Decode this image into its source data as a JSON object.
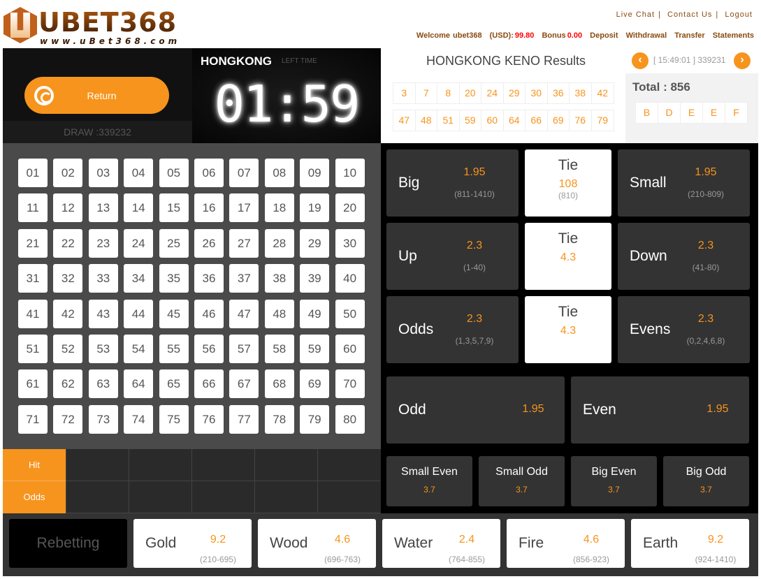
{
  "logo": {
    "text": "UBET368",
    "url": "www.uBet368.com"
  },
  "top_links": [
    "Live Chat",
    "Contact Us",
    "Logout"
  ],
  "account": {
    "welcome": "Welcome",
    "user": "ubet368",
    "currency_label": "(USD):",
    "balance": "99.80",
    "bonus_label": "Bonus",
    "bonus": "0.00",
    "links": [
      "Deposit",
      "Withdrawal",
      "Transfer",
      "Statements"
    ]
  },
  "return_label": "Return",
  "draw_label": "DRAW :339232",
  "timer": {
    "city": "HONGKONG",
    "left_time_label": "LEFT TIME",
    "time": "01:59"
  },
  "results": {
    "title": "HONGKONG KENO Results",
    "draw_info": "[ 15:49:01 ] 339231",
    "prev": "‹",
    "next": "›",
    "row1": [
      "3",
      "7",
      "8",
      "20",
      "24",
      "29",
      "30",
      "36",
      "38",
      "42"
    ],
    "row2": [
      "47",
      "48",
      "51",
      "59",
      "60",
      "64",
      "66",
      "69",
      "76",
      "79"
    ],
    "total": "Total : 856",
    "letters": [
      "B",
      "D",
      "E",
      "E",
      "F"
    ]
  },
  "numbers": [
    "01",
    "02",
    "03",
    "04",
    "05",
    "06",
    "07",
    "08",
    "09",
    "10",
    "11",
    "12",
    "13",
    "14",
    "15",
    "16",
    "17",
    "18",
    "19",
    "20",
    "21",
    "22",
    "23",
    "24",
    "25",
    "26",
    "27",
    "28",
    "29",
    "30",
    "31",
    "32",
    "33",
    "34",
    "35",
    "36",
    "37",
    "38",
    "39",
    "40",
    "41",
    "42",
    "43",
    "44",
    "45",
    "46",
    "47",
    "48",
    "49",
    "50",
    "51",
    "52",
    "53",
    "54",
    "55",
    "56",
    "57",
    "58",
    "59",
    "60",
    "61",
    "62",
    "63",
    "64",
    "65",
    "66",
    "67",
    "68",
    "69",
    "70",
    "71",
    "72",
    "73",
    "74",
    "75",
    "76",
    "77",
    "78",
    "79",
    "80"
  ],
  "bets": [
    {
      "left": {
        "name": "Big",
        "odds": "1.95",
        "range": "(811-1410)"
      },
      "tie": {
        "name": "Tie",
        "odds": "108",
        "range": "(810)"
      },
      "right": {
        "name": "Small",
        "odds": "1.95",
        "range": "(210-809)"
      }
    },
    {
      "left": {
        "name": "Up",
        "odds": "2.3",
        "range": "(1-40)"
      },
      "tie": {
        "name": "Tie",
        "odds": "4.3"
      },
      "right": {
        "name": "Down",
        "odds": "2.3",
        "range": "(41-80)"
      }
    },
    {
      "left": {
        "name": "Odds",
        "odds": "2.3",
        "range": "(1,3,5,7,9)"
      },
      "tie": {
        "name": "Tie",
        "odds": "4.3"
      },
      "right": {
        "name": "Evens",
        "odds": "2.3",
        "range": "(0,2,4,6,8)"
      }
    }
  ],
  "odd_even": [
    {
      "name": "Odd",
      "odds": "1.95"
    },
    {
      "name": "Even",
      "odds": "1.95"
    }
  ],
  "combos": [
    {
      "name": "Small Even",
      "odds": "3.7"
    },
    {
      "name": "Small Odd",
      "odds": "3.7"
    },
    {
      "name": "Big Even",
      "odds": "3.7"
    },
    {
      "name": "Big Odd",
      "odds": "3.7"
    }
  ],
  "hit_table": {
    "hit_label": "Hit",
    "odds_label": "Odds"
  },
  "rebet_label": "Rebetting",
  "elements": [
    {
      "name": "Gold",
      "odds": "9.2",
      "range": "(210-695)"
    },
    {
      "name": "Wood",
      "odds": "4.6",
      "range": "(696-763)"
    },
    {
      "name": "Water",
      "odds": "2.4",
      "range": "(764-855)"
    },
    {
      "name": "Fire",
      "odds": "4.6",
      "range": "(856-923)"
    },
    {
      "name": "Earth",
      "odds": "9.2",
      "range": "(924-1410)"
    }
  ],
  "colors": {
    "accent": "#f7941d",
    "balance": "#ff0000",
    "link": "#8a4a10"
  }
}
